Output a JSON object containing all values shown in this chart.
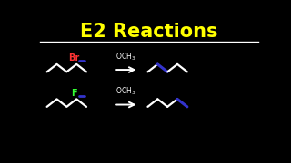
{
  "title": "E2 Reactions",
  "title_color": "#FFFF00",
  "bg_color": "#000000",
  "line_color": "#FFFFFF",
  "br_color": "#FF3333",
  "f_color": "#33FF33",
  "blue_color": "#3333CC",
  "arrow_color": "#FFFFFF",
  "och3_color": "#FFFFFF",
  "figw": 3.2,
  "figh": 1.8,
  "dpi": 100
}
